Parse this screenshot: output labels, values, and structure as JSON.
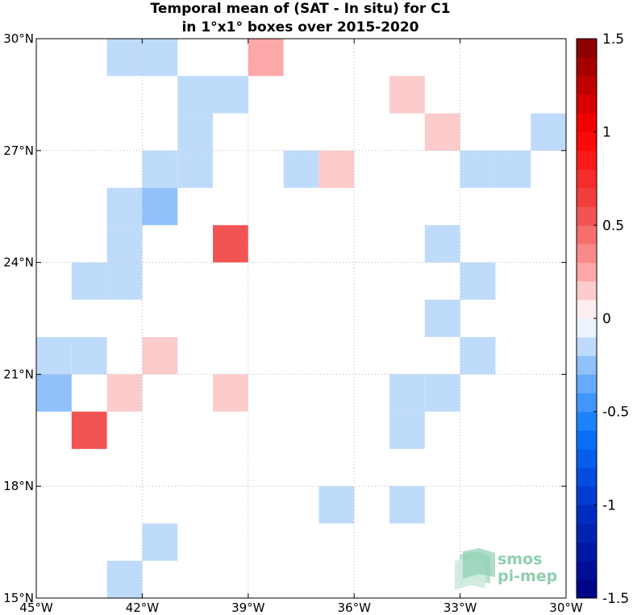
{
  "chart_data": {
    "type": "heatmap",
    "title_lines": [
      "Temporal mean of (SAT - In situ) for C1",
      "in 1°x1° boxes over 2015-2020"
    ],
    "x_ticks": [
      {
        "value": -45,
        "label": "45°W"
      },
      {
        "value": -42,
        "label": "42°W"
      },
      {
        "value": -39,
        "label": "39°W"
      },
      {
        "value": -36,
        "label": "36°W"
      },
      {
        "value": -33,
        "label": "33°W"
      },
      {
        "value": -30,
        "label": "30°W"
      }
    ],
    "y_ticks": [
      {
        "value": 15,
        "label": "15°N"
      },
      {
        "value": 18,
        "label": "18°N"
      },
      {
        "value": 21,
        "label": "21°N"
      },
      {
        "value": 24,
        "label": "24°N"
      },
      {
        "value": 27,
        "label": "27°N"
      },
      {
        "value": 30,
        "label": "30°N"
      }
    ],
    "xlim": [
      -45,
      -30
    ],
    "ylim": [
      15,
      30
    ],
    "grid": true,
    "colorbar": {
      "range": [
        -1.5,
        1.5
      ],
      "ticks": [
        {
          "value": 1.5,
          "label": "1.5"
        },
        {
          "value": 1,
          "label": "1"
        },
        {
          "value": 0.5,
          "label": "0.5"
        },
        {
          "value": 0,
          "label": "0"
        },
        {
          "value": -0.5,
          "label": "-0.5"
        },
        {
          "value": -1,
          "label": "-1"
        },
        {
          "value": -1.5,
          "label": "-1.5"
        }
      ],
      "levels": 30
    },
    "cells": [
      {
        "lon": -43,
        "lat": 29,
        "value": -0.15
      },
      {
        "lon": -42,
        "lat": 29,
        "value": -0.15
      },
      {
        "lon": -39,
        "lat": 29,
        "value": 0.25
      },
      {
        "lon": -41,
        "lat": 28,
        "value": -0.15
      },
      {
        "lon": -40,
        "lat": 28,
        "value": -0.15
      },
      {
        "lon": -35,
        "lat": 28,
        "value": 0.15
      },
      {
        "lon": -41,
        "lat": 27,
        "value": -0.15
      },
      {
        "lon": -34,
        "lat": 27,
        "value": 0.15
      },
      {
        "lon": -31,
        "lat": 27,
        "value": -0.15
      },
      {
        "lon": -42,
        "lat": 26,
        "value": -0.15
      },
      {
        "lon": -41,
        "lat": 26,
        "value": -0.15
      },
      {
        "lon": -38,
        "lat": 26,
        "value": -0.15
      },
      {
        "lon": -37,
        "lat": 26,
        "value": 0.15
      },
      {
        "lon": -33,
        "lat": 26,
        "value": -0.15
      },
      {
        "lon": -32,
        "lat": 26,
        "value": -0.15
      },
      {
        "lon": -43,
        "lat": 25,
        "value": -0.15
      },
      {
        "lon": -42,
        "lat": 25,
        "value": -0.25
      },
      {
        "lon": -43,
        "lat": 24,
        "value": -0.15
      },
      {
        "lon": -40,
        "lat": 24,
        "value": 0.55
      },
      {
        "lon": -34,
        "lat": 24,
        "value": -0.15
      },
      {
        "lon": -44,
        "lat": 23,
        "value": -0.15
      },
      {
        "lon": -43,
        "lat": 23,
        "value": -0.15
      },
      {
        "lon": -33,
        "lat": 23,
        "value": -0.15
      },
      {
        "lon": -34,
        "lat": 22,
        "value": -0.15
      },
      {
        "lon": -45,
        "lat": 21,
        "value": -0.15
      },
      {
        "lon": -44,
        "lat": 21,
        "value": -0.15
      },
      {
        "lon": -42,
        "lat": 21,
        "value": 0.15
      },
      {
        "lon": -33,
        "lat": 21,
        "value": -0.15
      },
      {
        "lon": -45,
        "lat": 20,
        "value": -0.25
      },
      {
        "lon": -43,
        "lat": 20,
        "value": 0.15
      },
      {
        "lon": -40,
        "lat": 20,
        "value": 0.15
      },
      {
        "lon": -35,
        "lat": 20,
        "value": -0.15
      },
      {
        "lon": -34,
        "lat": 20,
        "value": -0.15
      },
      {
        "lon": -44,
        "lat": 19,
        "value": 0.55
      },
      {
        "lon": -35,
        "lat": 19,
        "value": -0.15
      },
      {
        "lon": -37,
        "lat": 17,
        "value": -0.15
      },
      {
        "lon": -35,
        "lat": 17,
        "value": -0.15
      },
      {
        "lon": -42,
        "lat": 16,
        "value": -0.15
      },
      {
        "lon": -43,
        "lat": 15,
        "value": -0.15
      }
    ]
  },
  "logo": {
    "line1": "smos",
    "line2": "pi-mep"
  }
}
